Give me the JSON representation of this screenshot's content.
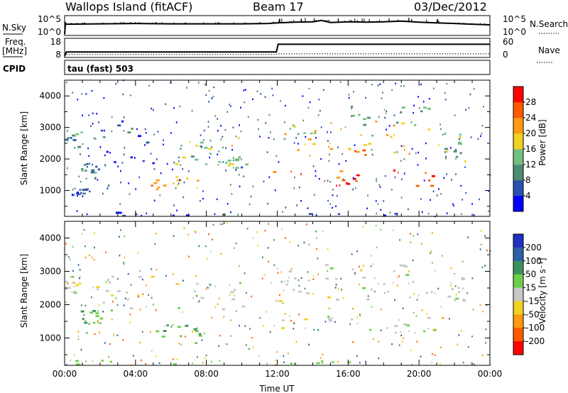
{
  "header": {
    "station": "Wallops Island (fitACF)",
    "beam": "Beam 17",
    "date": "03/Dec/2012"
  },
  "status_panel": {
    "nsky_label": "N.Sky",
    "nsearch_label": "N.Search",
    "noise_ticks_left": [
      "10^5",
      "10^0"
    ],
    "noise_ticks_right": [
      "10^5",
      "10^0"
    ],
    "freq_label_1": "Freq.",
    "freq_label_2": "[MHz]",
    "freq_ticks": [
      "18",
      "8"
    ],
    "nave_label": "Nave",
    "nave_ticks": [
      "60",
      "0"
    ],
    "cpid_label": "CPID",
    "cpid_value": "tau (fast) 503"
  },
  "chart_data": [
    {
      "type": "line",
      "name": "noise",
      "x": [
        0,
        0.05,
        0.1,
        2,
        4,
        6,
        8,
        10,
        11.5,
        12,
        13,
        14,
        14.5,
        15,
        16,
        17,
        18,
        19,
        20,
        21,
        22,
        23,
        24
      ],
      "sky": [
        0,
        3.2,
        2.9,
        3.0,
        3.1,
        3.0,
        3.0,
        3.0,
        3.1,
        3.3,
        3.5,
        3.6,
        4.0,
        3.4,
        3.6,
        3.5,
        3.6,
        3.8,
        3.5,
        3.3,
        3.1,
        2.9,
        2.7
      ],
      "xlim": [
        0,
        24
      ],
      "ylim": [
        0,
        5
      ]
    },
    {
      "type": "line",
      "name": "frequency",
      "x": [
        0,
        0.1,
        11.95,
        12.05,
        24
      ],
      "freq_mhz": [
        8,
        10.5,
        10.5,
        15.2,
        15.2
      ],
      "nave": [
        0,
        6,
        6,
        8,
        8
      ],
      "xlim": [
        0,
        24
      ],
      "ylim_freq": [
        8,
        18
      ],
      "ylim_nave": [
        0,
        60
      ]
    },
    {
      "type": "heatmap",
      "name": "power",
      "xlabel": "",
      "ylabel": "Slant Range [km]",
      "xlim": [
        0,
        24
      ],
      "ylim": [
        180,
        4500
      ],
      "yticks": [
        "1000",
        "2000",
        "3000",
        "4000"
      ],
      "colorbar": {
        "label": "Power [dB]",
        "ticks": [
          "4",
          "8",
          "12",
          "16",
          "20",
          "24",
          "28"
        ],
        "colors": [
          "#0000ff",
          "#2a50b0",
          "#4b8c6e",
          "#72c080",
          "#f2d020",
          "#ff9a10",
          "#ff5a00",
          "#ff0000"
        ]
      },
      "regions": [
        {
          "t": [
            0.0,
            0.9
          ],
          "r": [
            2350,
            2900
          ],
          "p": 10
        },
        {
          "t": [
            0.3,
            1.2
          ],
          "r": [
            850,
            1100
          ],
          "p": 7
        },
        {
          "t": [
            0.9,
            2.0
          ],
          "r": [
            1400,
            1850
          ],
          "p": 9
        },
        {
          "t": [
            1.5,
            5.0
          ],
          "r": [
            1800,
            3200
          ],
          "p": 5
        },
        {
          "t": [
            4.8,
            7.6
          ],
          "r": [
            1000,
            1450
          ],
          "p": 20
        },
        {
          "t": [
            6.0,
            10.0
          ],
          "r": [
            1800,
            2700
          ],
          "p": 16
        },
        {
          "t": [
            8.5,
            10.5
          ],
          "r": [
            1600,
            2100
          ],
          "p": 12
        },
        {
          "t": [
            11.5,
            21.5
          ],
          "r": [
            1100,
            1650
          ],
          "p": 27
        },
        {
          "t": [
            11.8,
            21.0
          ],
          "r": [
            2100,
            2500
          ],
          "p": 20
        },
        {
          "t": [
            12.0,
            20.5
          ],
          "r": [
            2550,
            3200
          ],
          "p": 18
        },
        {
          "t": [
            16.0,
            20.5
          ],
          "r": [
            2900,
            3700
          ],
          "p": 12
        },
        {
          "t": [
            21.0,
            22.6
          ],
          "r": [
            1900,
            2800
          ],
          "p": 14
        },
        {
          "t": [
            0.0,
            24.0
          ],
          "r": [
            200,
            320
          ],
          "p": 6
        }
      ]
    },
    {
      "type": "heatmap",
      "name": "velocity",
      "xlabel": "Time UT",
      "ylabel": "Slant Range [km]",
      "xlim": [
        0,
        24
      ],
      "ylim": [
        180,
        4500
      ],
      "xticks": [
        "00:00",
        "04:00",
        "08:00",
        "12:00",
        "16:00",
        "20:00",
        "00:00"
      ],
      "yticks": [
        "1000",
        "2000",
        "3000",
        "4000"
      ],
      "colorbar": {
        "label": "Velocity [m s⁻¹]",
        "ticks": [
          "200",
          "100",
          "50",
          "15",
          "-15",
          "-50",
          "-100",
          "-200"
        ],
        "colors": [
          "#2030c0",
          "#2e5fa8",
          "#3d9060",
          "#6ed04a",
          "#c8c8c8",
          "#f2d020",
          "#ff9a10",
          "#ff5a00",
          "#ff0000"
        ]
      },
      "regions": [
        {
          "t": [
            0.0,
            0.9
          ],
          "r": [
            2350,
            2900
          ],
          "v": 0
        },
        {
          "t": [
            0.9,
            2.0
          ],
          "r": [
            1400,
            1850
          ],
          "v": 40
        },
        {
          "t": [
            1.5,
            5.0
          ],
          "r": [
            1800,
            3200
          ],
          "v": 0
        },
        {
          "t": [
            4.8,
            7.6
          ],
          "r": [
            1000,
            1450
          ],
          "v": 35
        },
        {
          "t": [
            6.0,
            10.0
          ],
          "r": [
            1800,
            2700
          ],
          "v": 0
        },
        {
          "t": [
            11.5,
            21.5
          ],
          "r": [
            1100,
            1650
          ],
          "v": 0
        },
        {
          "t": [
            11.8,
            21.0
          ],
          "r": [
            2100,
            2500
          ],
          "v": 0
        },
        {
          "t": [
            12.0,
            20.5
          ],
          "r": [
            2550,
            3200
          ],
          "v": 0
        },
        {
          "t": [
            21.0,
            22.6
          ],
          "r": [
            1900,
            2800
          ],
          "v": 0
        },
        {
          "t": [
            0.0,
            24.0
          ],
          "r": [
            200,
            320
          ],
          "v": 20
        }
      ]
    }
  ]
}
